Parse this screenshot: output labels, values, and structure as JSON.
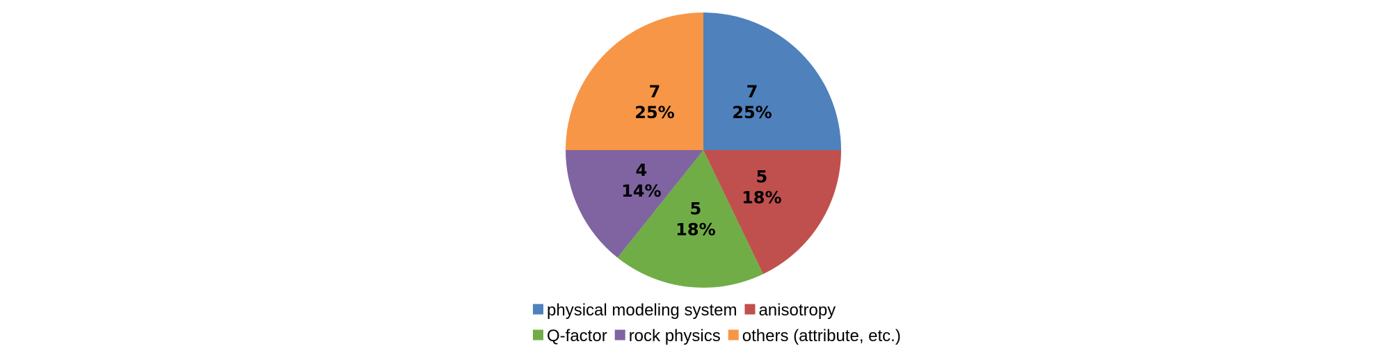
{
  "chart_data": {
    "type": "pie",
    "categories": [
      "physical modeling system",
      "anisotropy",
      "Q-factor",
      "rock physics",
      "others (attribute, etc.)"
    ],
    "values": [
      7,
      5,
      5,
      4,
      7
    ],
    "percent_labels": [
      "25%",
      "18%",
      "18%",
      "14%",
      "25%"
    ],
    "colors": [
      "#4F81BD",
      "#C0504D",
      "#70AD47",
      "#8064A2",
      "#F79646"
    ],
    "legend_position": "bottom",
    "start_angle": "12 o'clock",
    "direction": "clockwise"
  }
}
